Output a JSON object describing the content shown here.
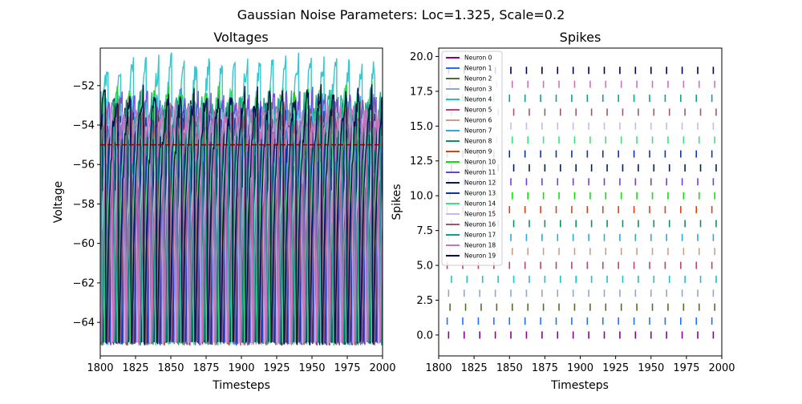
{
  "figure": {
    "suptitle": "Gaussian Noise Parameters: Loc=1.325, Scale=0.2"
  },
  "chart_data": [
    {
      "type": "line",
      "title": "Voltages",
      "xlabel": "Timesteps",
      "ylabel": "Voltage",
      "xlim": [
        1800,
        2000
      ],
      "ylim": [
        -65.7,
        -50.1
      ],
      "xticks": [
        1800,
        1825,
        1850,
        1875,
        1900,
        1925,
        1950,
        1975,
        2000
      ],
      "yticks": [
        -64,
        -62,
        -60,
        -58,
        -56,
        -54,
        -52
      ],
      "threshold": {
        "y": -55,
        "color": "#8b0000",
        "style": "dashed"
      },
      "reset_voltage": -65,
      "spike_period": 9,
      "legend": "none",
      "grid": false,
      "series": [
        {
          "offset": 0,
          "peak": -54.5,
          "color": "#8b008b"
        },
        {
          "offset": 5,
          "peak": -52.4,
          "color": "#1f6fff"
        },
        {
          "offset": 2,
          "peak": -53.8,
          "color": "#556b2f"
        },
        {
          "offset": 7,
          "peak": -54.2,
          "color": "#8fa8c8"
        },
        {
          "offset": 3,
          "peak": -50.8,
          "color": "#20c0c8"
        },
        {
          "offset": 6,
          "peak": -52.8,
          "color": "#c04070"
        },
        {
          "offset": 1,
          "peak": -54.0,
          "color": "#c8a08a"
        },
        {
          "offset": 4,
          "peak": -52.9,
          "color": "#30a8d8"
        },
        {
          "offset": 8,
          "peak": -53.6,
          "color": "#10905a"
        },
        {
          "offset": 0,
          "peak": -54.3,
          "color": "#e04010"
        },
        {
          "offset": 5,
          "peak": -52.3,
          "color": "#10e010"
        },
        {
          "offset": 2,
          "peak": -52.6,
          "color": "#7040d0"
        },
        {
          "offset": 7,
          "peak": -52.9,
          "color": "#002050"
        },
        {
          "offset": 3,
          "peak": -53.7,
          "color": "#1030b0"
        },
        {
          "offset": 6,
          "peak": -52.5,
          "color": "#40e080"
        },
        {
          "offset": 1,
          "peak": -53.5,
          "color": "#c8b8f0"
        },
        {
          "offset": 4,
          "peak": -53.2,
          "color": "#a05868"
        },
        {
          "offset": 8,
          "peak": -52.7,
          "color": "#10a088"
        },
        {
          "offset": 0,
          "peak": -53.3,
          "color": "#d070c0"
        },
        {
          "offset": 5,
          "peak": -52.4,
          "color": "#000050"
        }
      ]
    },
    {
      "type": "scatter",
      "marker": "vertical-bar",
      "title": "Spikes",
      "xlabel": "Timesteps",
      "ylabel": "Spikes",
      "xlim": [
        1800,
        2000
      ],
      "ylim": [
        -1.5,
        20.6
      ],
      "xticks": [
        1800,
        1825,
        1850,
        1875,
        1900,
        1925,
        1950,
        1975,
        2000
      ],
      "yticks": [
        0.0,
        2.5,
        5.0,
        7.5,
        10.0,
        12.5,
        15.0,
        17.5,
        20.0
      ],
      "ytick_labels": [
        "0.0",
        "2.5",
        "5.0",
        "7.5",
        "10.0",
        "12.5",
        "15.0",
        "17.5",
        "20.0"
      ],
      "legend": "top-left",
      "grid": false,
      "series": [
        {
          "name": "Neuron 0",
          "y": 0,
          "color": "#8b008b",
          "x": [
            1807,
            1818,
            1829,
            1840,
            1851,
            1862,
            1873,
            1884,
            1895,
            1906,
            1917,
            1928,
            1939,
            1950,
            1961,
            1972,
            1983,
            1994
          ]
        },
        {
          "name": "Neuron 1",
          "y": 1,
          "color": "#1f6fff",
          "x": [
            1806,
            1817,
            1828,
            1839,
            1850,
            1861,
            1872,
            1883,
            1894,
            1905,
            1916,
            1927,
            1938,
            1949,
            1960,
            1971,
            1982,
            1993
          ]
        },
        {
          "name": "Neuron 2",
          "y": 2,
          "color": "#556b2f",
          "x": [
            1808,
            1819,
            1830,
            1841,
            1852,
            1863,
            1874,
            1885,
            1896,
            1907,
            1918,
            1929,
            1940,
            1951,
            1962,
            1973,
            1984,
            1995
          ]
        },
        {
          "name": "Neuron 3",
          "y": 3,
          "color": "#8fa8c8",
          "x": [
            1807,
            1818,
            1829,
            1840,
            1851,
            1862,
            1873,
            1884,
            1895,
            1906,
            1917,
            1928,
            1939,
            1950,
            1961,
            1972,
            1983,
            1994
          ]
        },
        {
          "name": "Neuron 4",
          "y": 4,
          "color": "#20c0c8",
          "x": [
            1809,
            1820,
            1831,
            1842,
            1853,
            1864,
            1875,
            1886,
            1897,
            1908,
            1919,
            1930,
            1941,
            1952,
            1963,
            1974,
            1985,
            1996
          ]
        },
        {
          "name": "Neuron 5",
          "y": 5,
          "color": "#c04070",
          "x": [
            1806,
            1817,
            1828,
            1839,
            1850,
            1861,
            1872,
            1883,
            1894,
            1905,
            1916,
            1927,
            1938,
            1949,
            1960,
            1971,
            1982,
            1993
          ]
        },
        {
          "name": "Neuron 6",
          "y": 6,
          "color": "#c8a08a",
          "x": [
            1808,
            1819,
            1830,
            1841,
            1852,
            1863,
            1874,
            1885,
            1896,
            1907,
            1918,
            1929,
            1940,
            1951,
            1962,
            1973,
            1984,
            1995
          ]
        },
        {
          "name": "Neuron 7",
          "y": 7,
          "color": "#30a8d8",
          "x": [
            1807,
            1818,
            1829,
            1840,
            1851,
            1862,
            1873,
            1884,
            1895,
            1906,
            1917,
            1928,
            1939,
            1950,
            1961,
            1972,
            1983,
            1994
          ]
        },
        {
          "name": "Neuron 8",
          "y": 8,
          "color": "#10905a",
          "x": [
            1809,
            1820,
            1831,
            1842,
            1853,
            1864,
            1875,
            1886,
            1897,
            1908,
            1919,
            1930,
            1941,
            1952,
            1963,
            1974,
            1985,
            1996
          ]
        },
        {
          "name": "Neuron 9",
          "y": 9,
          "color": "#e04010",
          "x": [
            1806,
            1817,
            1828,
            1839,
            1850,
            1861,
            1872,
            1883,
            1894,
            1905,
            1916,
            1927,
            1938,
            1949,
            1960,
            1971,
            1982,
            1993
          ]
        },
        {
          "name": "Neuron 10",
          "y": 10,
          "color": "#10e010",
          "x": [
            1808,
            1819,
            1830,
            1841,
            1852,
            1863,
            1874,
            1885,
            1896,
            1907,
            1918,
            1929,
            1940,
            1951,
            1962,
            1973,
            1984,
            1995
          ]
        },
        {
          "name": "Neuron 11",
          "y": 11,
          "color": "#7040d0",
          "x": [
            1807,
            1818,
            1829,
            1840,
            1851,
            1862,
            1873,
            1884,
            1895,
            1906,
            1917,
            1928,
            1939,
            1950,
            1961,
            1972,
            1983,
            1994
          ]
        },
        {
          "name": "Neuron 12",
          "y": 12,
          "color": "#002050",
          "x": [
            1809,
            1820,
            1831,
            1842,
            1853,
            1864,
            1875,
            1886,
            1897,
            1908,
            1919,
            1930,
            1941,
            1952,
            1963,
            1974,
            1985,
            1996
          ]
        },
        {
          "name": "Neuron 13",
          "y": 13,
          "color": "#1030b0",
          "x": [
            1806,
            1817,
            1828,
            1839,
            1850,
            1861,
            1872,
            1883,
            1894,
            1905,
            1916,
            1927,
            1938,
            1949,
            1960,
            1971,
            1982,
            1993
          ]
        },
        {
          "name": "Neuron 14",
          "y": 14,
          "color": "#40e080",
          "x": [
            1808,
            1819,
            1830,
            1841,
            1852,
            1863,
            1874,
            1885,
            1896,
            1907,
            1918,
            1929,
            1940,
            1951,
            1962,
            1973,
            1984,
            1995
          ]
        },
        {
          "name": "Neuron 15",
          "y": 15,
          "color": "#c8b8f0",
          "x": [
            1807,
            1818,
            1829,
            1840,
            1851,
            1862,
            1873,
            1884,
            1895,
            1906,
            1917,
            1928,
            1939,
            1950,
            1961,
            1972,
            1983,
            1994
          ]
        },
        {
          "name": "Neuron 16",
          "y": 16,
          "color": "#a05868",
          "x": [
            1809,
            1820,
            1831,
            1842,
            1853,
            1864,
            1875,
            1886,
            1897,
            1908,
            1919,
            1930,
            1941,
            1952,
            1963,
            1974,
            1985,
            1996
          ]
        },
        {
          "name": "Neuron 17",
          "y": 17,
          "color": "#10a088",
          "x": [
            1806,
            1817,
            1828,
            1839,
            1850,
            1861,
            1872,
            1883,
            1894,
            1905,
            1916,
            1927,
            1938,
            1949,
            1960,
            1971,
            1982,
            1993
          ]
        },
        {
          "name": "Neuron 18",
          "y": 18,
          "color": "#d070c0",
          "x": [
            1808,
            1819,
            1830,
            1841,
            1852,
            1863,
            1874,
            1885,
            1896,
            1907,
            1918,
            1929,
            1940,
            1951,
            1962,
            1973,
            1984,
            1995
          ]
        },
        {
          "name": "Neuron 19",
          "y": 19,
          "color": "#000050",
          "x": [
            1807,
            1818,
            1829,
            1840,
            1851,
            1862,
            1873,
            1884,
            1895,
            1906,
            1917,
            1928,
            1939,
            1950,
            1961,
            1972,
            1983,
            1994
          ]
        }
      ]
    }
  ]
}
